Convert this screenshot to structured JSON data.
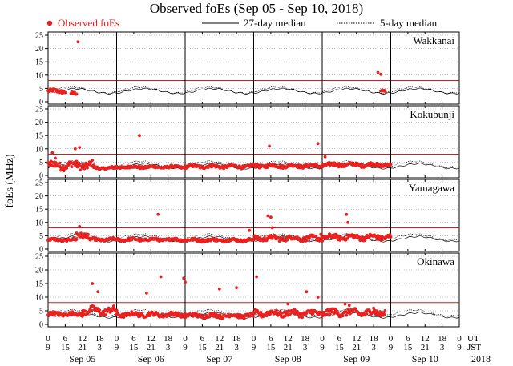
{
  "chart_data": {
    "type": "scatter",
    "title": "Observed foEs (Sep 05 - Sep 10, 2018)",
    "ylabel": "foEs (MHz)",
    "ylim": [
      0,
      25
    ],
    "yticks": [
      0,
      5,
      10,
      15,
      20,
      25
    ],
    "legend": {
      "observed": "Observed foEs",
      "median27": "27-day median",
      "median5": "5-day median",
      "placement": "top"
    },
    "colors": {
      "observed": "#e8201f",
      "threshold": "#c0222a",
      "grid": "#888888"
    },
    "threshold_mhz": 8,
    "x_hours_range": [
      0,
      144
    ],
    "ut_ticks": [
      "0",
      "6",
      "12",
      "18",
      "0",
      "6",
      "12",
      "18",
      "0",
      "6",
      "12",
      "18",
      "0",
      "6",
      "12",
      "18",
      "0",
      "6",
      "12",
      "18",
      "0",
      "6",
      "12",
      "18",
      "0"
    ],
    "jst_ticks": [
      "9",
      "15",
      "21",
      "3",
      "9",
      "15",
      "21",
      "3",
      "9",
      "15",
      "21",
      "3",
      "9",
      "15",
      "21",
      "3",
      "9",
      "15",
      "21",
      "3",
      "9",
      "15",
      "21",
      "3",
      "9"
    ],
    "ut_label": "UT",
    "jst_label": "JST",
    "days": [
      "Sep 05",
      "Sep 06",
      "Sep 07",
      "Sep 08",
      "Sep 09",
      "Sep 10"
    ],
    "year": "2018",
    "stations": [
      {
        "name": "Wakkanai",
        "median27": 4.0,
        "median5": 4.4,
        "observed_segments": [
          {
            "from": 0,
            "to": 6,
            "base": 3.8,
            "amp": 1.2
          },
          {
            "from": 8,
            "to": 10,
            "base": 2.8,
            "amp": 1.0
          },
          {
            "from": 116.5,
            "to": 118,
            "base": 4.2,
            "amp": 0.6
          }
        ],
        "spikes": [
          [
            10.5,
            22.5
          ],
          [
            115.5,
            11.0
          ],
          [
            116.5,
            10.3
          ]
        ]
      },
      {
        "name": "Kokubunji",
        "median27": 3.5,
        "median5": 4.2,
        "observed_segments": [
          {
            "from": 0,
            "to": 16,
            "base": 3.4,
            "amp": 2.6
          },
          {
            "from": 16,
            "to": 24,
            "base": 2.6,
            "amp": 0.9
          },
          {
            "from": 24,
            "to": 48,
            "base": 3.0,
            "amp": 0.9
          },
          {
            "from": 48,
            "to": 72,
            "base": 3.2,
            "amp": 1.1
          },
          {
            "from": 72,
            "to": 96,
            "base": 3.4,
            "amp": 1.2
          },
          {
            "from": 96,
            "to": 120,
            "base": 3.8,
            "amp": 1.3
          }
        ],
        "spikes": [
          [
            1.5,
            8.5
          ],
          [
            2.5,
            6.5
          ],
          [
            9.5,
            10.0
          ],
          [
            11,
            10.5
          ],
          [
            32,
            15.0
          ],
          [
            77.5,
            11.0
          ],
          [
            94.5,
            12.0
          ],
          [
            97,
            7.0
          ]
        ]
      },
      {
        "name": "Yamagawa",
        "median27": 3.8,
        "median5": 4.5,
        "observed_segments": [
          {
            "from": 0,
            "to": 10,
            "base": 3.3,
            "amp": 0.9
          },
          {
            "from": 10,
            "to": 14,
            "base": 5.2,
            "amp": 2.2
          },
          {
            "from": 14,
            "to": 48,
            "base": 3.4,
            "amp": 1.0
          },
          {
            "from": 48,
            "to": 72,
            "base": 3.2,
            "amp": 1.0
          },
          {
            "from": 72,
            "to": 96,
            "base": 3.8,
            "amp": 1.6
          },
          {
            "from": 96,
            "to": 120,
            "base": 4.2,
            "amp": 1.8
          }
        ],
        "spikes": [
          [
            11,
            8.5
          ],
          [
            38.5,
            13.0
          ],
          [
            70.5,
            7.0
          ],
          [
            77,
            12.5
          ],
          [
            78,
            12.0
          ],
          [
            78.5,
            8.0
          ],
          [
            95.5,
            5.5
          ],
          [
            104.5,
            13.0
          ],
          [
            105,
            10.0
          ]
        ]
      },
      {
        "name": "Okinawa",
        "median27": 3.4,
        "median5": 4.2,
        "observed_segments": [
          {
            "from": 0,
            "to": 12,
            "base": 3.6,
            "amp": 1.2
          },
          {
            "from": 12,
            "to": 24,
            "base": 4.6,
            "amp": 2.4
          },
          {
            "from": 24,
            "to": 48,
            "base": 3.4,
            "amp": 1.4
          },
          {
            "from": 48,
            "to": 72,
            "base": 3.0,
            "amp": 1.4
          },
          {
            "from": 72,
            "to": 96,
            "base": 3.8,
            "amp": 2.0
          },
          {
            "from": 96,
            "to": 118,
            "base": 4.0,
            "amp": 2.2
          }
        ],
        "spikes": [
          [
            15.5,
            15.0
          ],
          [
            17.5,
            12.0
          ],
          [
            34.5,
            11.5
          ],
          [
            39.5,
            17.5
          ],
          [
            47.5,
            17.0
          ],
          [
            48,
            15.5
          ],
          [
            60,
            13.0
          ],
          [
            66,
            13.5
          ],
          [
            73,
            17.5
          ],
          [
            84,
            7.5
          ],
          [
            90.5,
            12.0
          ],
          [
            94.5,
            10.0
          ],
          [
            104,
            7.5
          ],
          [
            105.5,
            7.0
          ],
          [
            114,
            6.0
          ]
        ]
      }
    ]
  }
}
